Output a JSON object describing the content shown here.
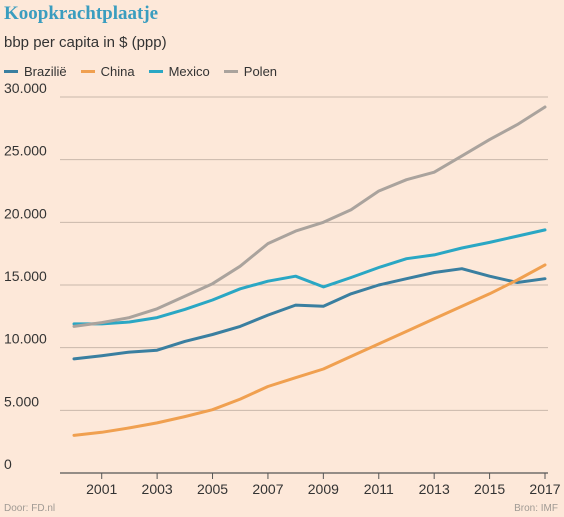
{
  "chart_data": {
    "type": "line",
    "title": "Koopkrachtplaatje",
    "subtitle": "bbp per capita in $ (ppp)",
    "ylim": [
      0,
      30000
    ],
    "yticks": [
      0,
      5000,
      10000,
      15000,
      20000,
      25000,
      30000
    ],
    "ytick_labels": [
      "0",
      "5.000",
      "10.000",
      "15.000",
      "20.000",
      "25.000",
      "30.000"
    ],
    "xlim": [
      2000,
      2017
    ],
    "xticks": [
      2001,
      2003,
      2005,
      2007,
      2009,
      2011,
      2013,
      2015,
      2017
    ],
    "x": [
      2000,
      2001,
      2002,
      2003,
      2004,
      2005,
      2006,
      2007,
      2008,
      2009,
      2010,
      2011,
      2012,
      2013,
      2014,
      2015,
      2016,
      2017
    ],
    "legend_position": "top-left",
    "grid": "horizontal",
    "series": [
      {
        "name": "Brazilië",
        "color": "#3a7fa0",
        "values": [
          9100,
          9350,
          9650,
          9800,
          10500,
          11050,
          11700,
          12600,
          13400,
          13300,
          14300,
          15000,
          15500,
          16000,
          16300,
          15700,
          15200,
          15500
        ]
      },
      {
        "name": "China",
        "color": "#f0a050",
        "values": [
          3000,
          3250,
          3600,
          4000,
          4500,
          5050,
          5900,
          6900,
          7600,
          8300,
          9300,
          10300,
          11300,
          12300,
          13300,
          14300,
          15400,
          16600
        ]
      },
      {
        "name": "Mexico",
        "color": "#2aa7c4",
        "values": [
          11900,
          11900,
          12050,
          12400,
          13050,
          13800,
          14700,
          15300,
          15700,
          14850,
          15600,
          16400,
          17100,
          17400,
          17950,
          18400,
          18900,
          19400
        ]
      },
      {
        "name": "Polen",
        "color": "#aaa39d",
        "values": [
          11700,
          12000,
          12400,
          13100,
          14100,
          15100,
          16500,
          18300,
          19300,
          20000,
          21000,
          22500,
          23400,
          24000,
          25300,
          26600,
          27800,
          29200
        ]
      }
    ]
  },
  "footer": {
    "source_left": "Door: FD.nl",
    "source_right": "Bron: IMF"
  }
}
